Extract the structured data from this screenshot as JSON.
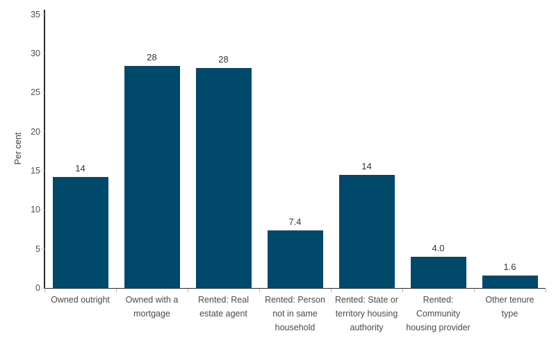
{
  "chart_data": {
    "type": "bar",
    "title": "",
    "xlabel": "",
    "ylabel": "Per cent",
    "ylim": [
      0,
      35
    ],
    "yticks": [
      0,
      5,
      10,
      15,
      20,
      25,
      30,
      35
    ],
    "grid": false,
    "legend_position": "none",
    "bar_color": "#00496b",
    "categories": [
      "Owned outright",
      "Owned with a mortgage",
      "Rented: Real estate agent",
      "Rented: Person not in same household",
      "Rented: State or territory housing authority",
      "Rented: Community housing provider",
      "Other tenure type"
    ],
    "category_lines": [
      [
        "Owned outright"
      ],
      [
        "Owned with a",
        "mortgage"
      ],
      [
        "Rented: Real",
        "estate agent"
      ],
      [
        "Rented: Person",
        "not in same",
        "household"
      ],
      [
        "Rented: State or",
        "territory housing",
        "authority"
      ],
      [
        "Rented:",
        "Community",
        "housing provider"
      ],
      [
        "Other tenure",
        "type"
      ]
    ],
    "values": [
      14.2,
      28.4,
      28.1,
      7.4,
      14.5,
      4.0,
      1.6
    ],
    "value_labels": [
      "14",
      "28",
      "28",
      "7.4",
      "14",
      "4.0",
      "1.6"
    ]
  },
  "colors": {
    "background": "#ffffff",
    "bar": "#00496b",
    "axis": "#2b2b2b",
    "y_tick_label": "#4e4e4e",
    "x_tick_label": "#4a4a4a",
    "value_label": "#333333",
    "y_tick_mark": "#d4d4d4",
    "x_tick_mark": "#b3b3b3"
  }
}
